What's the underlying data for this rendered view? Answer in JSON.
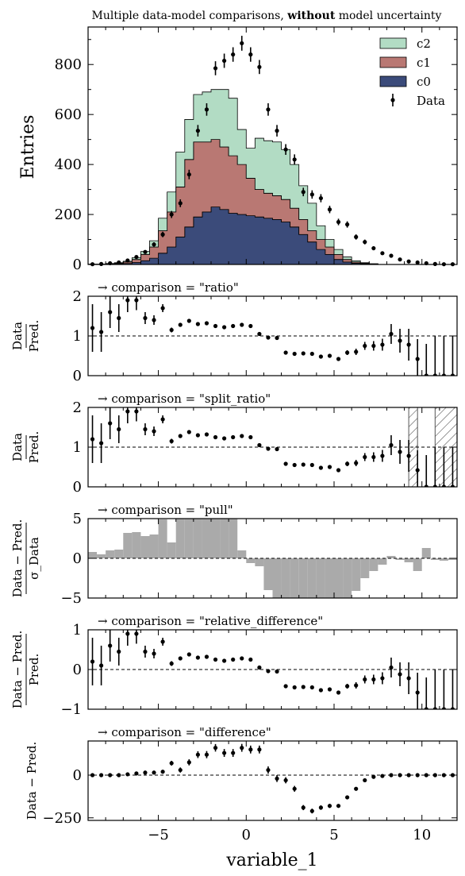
{
  "title": {
    "prefix": "Multiple data-model comparisons, ",
    "bold": "without",
    "suffix": " model uncertainty"
  },
  "xlabel": "variable_1",
  "colors": {
    "c0": "#3b4b7a",
    "c1": "#b97873",
    "c2": "#b2dcc4",
    "data": "#000000",
    "pull": "#aaaaaa"
  },
  "chart_data": [
    {
      "type": "bar",
      "panel": "main",
      "ylabel": "Entries",
      "xlim": [
        -9,
        12
      ],
      "ylim": [
        0,
        950
      ],
      "yticks": [
        0,
        200,
        400,
        600,
        800
      ],
      "bins": [
        -8.75,
        -8.25,
        -7.75,
        -7.25,
        -6.75,
        -6.25,
        -5.75,
        -5.25,
        -4.75,
        -4.25,
        -3.75,
        -3.25,
        -2.75,
        -2.25,
        -1.75,
        -1.25,
        -0.75,
        -0.25,
        0.25,
        0.75,
        1.25,
        1.75,
        2.25,
        2.75,
        3.25,
        3.75,
        4.25,
        4.75,
        5.25,
        5.75,
        6.25,
        6.75,
        7.25,
        7.75,
        8.25,
        8.75,
        9.25,
        9.75,
        10.25,
        10.75,
        11.25,
        11.75
      ],
      "stack_order": [
        "c0",
        "c1",
        "c2"
      ],
      "series": [
        {
          "name": "c0",
          "values": [
            0,
            0,
            1,
            2,
            4,
            8,
            15,
            25,
            45,
            70,
            110,
            150,
            190,
            210,
            230,
            220,
            205,
            200,
            195,
            190,
            185,
            180,
            170,
            150,
            120,
            90,
            60,
            40,
            20,
            10,
            5,
            2,
            1,
            0,
            0,
            0,
            0,
            0,
            0,
            0,
            0,
            0
          ]
        },
        {
          "name": "c1",
          "values": [
            1,
            1,
            2,
            3,
            6,
            12,
            25,
            45,
            90,
            140,
            200,
            270,
            300,
            280,
            270,
            250,
            230,
            200,
            150,
            110,
            100,
            95,
            90,
            75,
            60,
            45,
            40,
            30,
            20,
            10,
            5,
            3,
            1,
            0,
            0,
            0,
            0,
            0,
            0,
            0,
            0,
            0
          ]
        },
        {
          "name": "c2",
          "values": [
            0,
            0,
            1,
            2,
            3,
            7,
            12,
            25,
            50,
            80,
            140,
            160,
            190,
            200,
            200,
            230,
            230,
            140,
            120,
            205,
            210,
            215,
            200,
            175,
            135,
            110,
            55,
            30,
            20,
            10,
            5,
            2,
            1,
            0,
            0,
            0,
            0,
            0,
            0,
            0,
            0,
            0
          ]
        }
      ],
      "data": {
        "name": "Data",
        "values": [
          1,
          2,
          5,
          8,
          16,
          30,
          50,
          80,
          120,
          200,
          245,
          360,
          535,
          620,
          785,
          815,
          840,
          885,
          840,
          790,
          620,
          535,
          460,
          420,
          290,
          280,
          265,
          220,
          170,
          160,
          110,
          90,
          65,
          45,
          35,
          20,
          12,
          8,
          5,
          2,
          1,
          1
        ]
      }
    },
    {
      "panel": "comparison",
      "label": "→ comparison = \"ratio\"",
      "ylabel": "Data / Pred.",
      "ylim": [
        0,
        2
      ],
      "yticks": [
        0,
        1,
        2
      ],
      "reference": 1,
      "values": [
        1.2,
        1.1,
        1.6,
        1.45,
        1.9,
        1.9,
        1.45,
        1.4,
        1.7,
        1.15,
        1.28,
        1.38,
        1.3,
        1.32,
        1.25,
        1.22,
        1.25,
        1.28,
        1.25,
        1.05,
        0.96,
        0.95,
        0.58,
        0.55,
        0.56,
        0.55,
        0.48,
        0.5,
        0.42,
        0.58,
        0.6,
        0.75,
        0.75,
        0.78,
        1.05,
        0.88,
        0.78,
        0.42,
        0,
        0,
        0,
        0
      ],
      "errors": [
        0.6,
        0.5,
        0.4,
        0.35,
        0.3,
        0.25,
        0.15,
        0.12,
        0.1,
        0.06,
        0.05,
        0.04,
        0.03,
        0.03,
        0.03,
        0.03,
        0.03,
        0.03,
        0.03,
        0.03,
        0.03,
        0.03,
        0.03,
        0.03,
        0.03,
        0.03,
        0.03,
        0.04,
        0.05,
        0.06,
        0.08,
        0.1,
        0.12,
        0.15,
        0.25,
        0.3,
        0.4,
        0.5,
        0.8,
        1,
        1,
        1
      ]
    },
    {
      "panel": "comparison",
      "label": "→ comparison = \"split_ratio\"",
      "ylabel": "Data / Pred.",
      "ylim": [
        0,
        2
      ],
      "yticks": [
        0,
        1,
        2
      ],
      "reference": 1,
      "hatched_x": [
        [
          9.25,
          9.75
        ],
        [
          10.75,
          12
        ]
      ],
      "values": [
        1.2,
        1.1,
        1.6,
        1.45,
        1.9,
        1.9,
        1.45,
        1.4,
        1.7,
        1.15,
        1.28,
        1.38,
        1.3,
        1.32,
        1.25,
        1.22,
        1.25,
        1.28,
        1.25,
        1.05,
        0.96,
        0.95,
        0.58,
        0.55,
        0.56,
        0.55,
        0.48,
        0.5,
        0.42,
        0.58,
        0.6,
        0.75,
        0.75,
        0.78,
        1.05,
        0.88,
        0.78,
        0.42,
        0,
        0,
        0,
        0
      ],
      "errors": [
        0.6,
        0.5,
        0.4,
        0.35,
        0.3,
        0.25,
        0.15,
        0.12,
        0.1,
        0.06,
        0.05,
        0.04,
        0.03,
        0.03,
        0.03,
        0.03,
        0.03,
        0.03,
        0.03,
        0.03,
        0.03,
        0.03,
        0.03,
        0.03,
        0.03,
        0.03,
        0.03,
        0.04,
        0.05,
        0.06,
        0.08,
        0.1,
        0.12,
        0.15,
        0.25,
        0.3,
        0.4,
        0.5,
        0.8,
        1,
        1,
        1
      ]
    },
    {
      "panel": "pull",
      "label": "→ comparison = \"pull\"",
      "ylabel": "Data − Pred. / σ Data",
      "ylim": [
        -5,
        5
      ],
      "yticks": [
        -5,
        0,
        5
      ],
      "reference": 0,
      "values": [
        0.8,
        0.5,
        1,
        1.1,
        3.2,
        3.3,
        2.8,
        3.0,
        4.9,
        2.0,
        6,
        6,
        6,
        6,
        6,
        6,
        5.8,
        1.0,
        -0.6,
        -1.0,
        -4.0,
        -5,
        -5,
        -5,
        -5,
        -5,
        -5,
        -5,
        -5,
        -5,
        -4.1,
        -2.5,
        -1.6,
        -0.8,
        0.3,
        -0.2,
        -0.5,
        -1.6,
        1.3,
        -0.2,
        -0.3,
        -0.2
      ]
    },
    {
      "panel": "comparison",
      "label": "→ comparison = \"relative_difference\"",
      "ylabel": "Data − Pred. / Pred.",
      "ylim": [
        -1,
        1
      ],
      "yticks": [
        -1,
        0,
        1
      ],
      "reference": 0,
      "values": [
        0.2,
        0.1,
        0.6,
        0.45,
        0.9,
        0.9,
        0.45,
        0.4,
        0.7,
        0.15,
        0.28,
        0.38,
        0.3,
        0.32,
        0.25,
        0.22,
        0.25,
        0.28,
        0.25,
        0.05,
        -0.04,
        -0.05,
        -0.42,
        -0.45,
        -0.44,
        -0.45,
        -0.52,
        -0.5,
        -0.58,
        -0.42,
        -0.4,
        -0.25,
        -0.25,
        -0.22,
        0.05,
        -0.12,
        -0.22,
        -0.58,
        -1,
        -1,
        -1,
        -1
      ],
      "errors": [
        0.6,
        0.5,
        0.4,
        0.35,
        0.3,
        0.25,
        0.15,
        0.12,
        0.1,
        0.06,
        0.05,
        0.04,
        0.03,
        0.03,
        0.03,
        0.03,
        0.03,
        0.03,
        0.03,
        0.03,
        0.03,
        0.03,
        0.03,
        0.03,
        0.03,
        0.03,
        0.03,
        0.04,
        0.05,
        0.06,
        0.08,
        0.1,
        0.12,
        0.15,
        0.25,
        0.3,
        0.4,
        0.5,
        0.8,
        1,
        1,
        1
      ]
    },
    {
      "panel": "comparison",
      "label": "→ comparison = \"difference\"",
      "ylabel": "Data − Pred.",
      "ylim": [
        -265,
        200
      ],
      "yticks": [
        -250,
        0
      ],
      "xticks": [
        -5,
        0,
        5,
        10
      ],
      "reference": 0,
      "values": [
        0,
        0,
        0,
        0,
        5,
        10,
        15,
        15,
        20,
        70,
        30,
        75,
        120,
        120,
        160,
        130,
        130,
        160,
        150,
        150,
        30,
        -20,
        -30,
        -80,
        -190,
        -210,
        -190,
        -180,
        -180,
        -130,
        -80,
        -30,
        -10,
        -5,
        0,
        0,
        0,
        0,
        0,
        0,
        0,
        0
      ],
      "errors": [
        2,
        2,
        2,
        3,
        4,
        5,
        7,
        9,
        11,
        14,
        15,
        18,
        20,
        21,
        22,
        23,
        23,
        23,
        23,
        23,
        21,
        20,
        18,
        17,
        15,
        14,
        13,
        12,
        10,
        9,
        8,
        7,
        6,
        5,
        4,
        3,
        3,
        2,
        2,
        1,
        1,
        1
      ]
    }
  ]
}
